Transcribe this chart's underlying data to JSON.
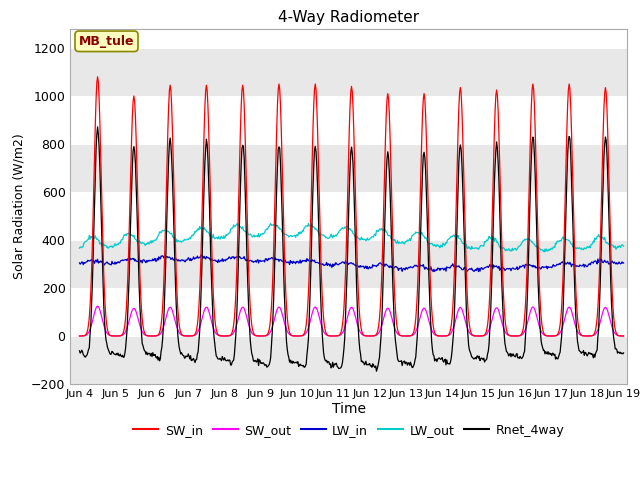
{
  "title": "4-Way Radiometer",
  "xlabel": "Time",
  "ylabel": "Solar Radiation (W/m2)",
  "ylim": [
    -200,
    1280
  ],
  "yticks": [
    -200,
    0,
    200,
    400,
    600,
    800,
    1000,
    1200
  ],
  "x_start_day": 3.75,
  "x_end_day": 19.1,
  "xtick_labels": [
    "Jun 4",
    "Jun 5",
    "Jun 6",
    "Jun 7",
    "Jun 8",
    "Jun 9",
    "Jun 10",
    "Jun 11",
    "Jun 12",
    "Jun 13",
    "Jun 14",
    "Jun 15",
    "Jun 16",
    "Jun 17",
    "Jun 18",
    "Jun 19"
  ],
  "xtick_positions": [
    4,
    5,
    6,
    7,
    8,
    9,
    10,
    11,
    12,
    13,
    14,
    15,
    16,
    17,
    18,
    19
  ],
  "annotation_text": "MB_tule",
  "annotation_bg": "#FFFFC0",
  "annotation_border": "#888800",
  "colors": {
    "SW_in": "#FF0000",
    "SW_out": "#FF00FF",
    "LW_in": "#0000CC",
    "LW_out": "#00CCCC",
    "Rnet_4way": "#000000"
  },
  "legend_labels": [
    "SW_in",
    "SW_out",
    "LW_in",
    "LW_out",
    "Rnet_4way"
  ],
  "figure_bg": "#FFFFFF",
  "plot_bg": "#FFFFFF",
  "band_color": "#E8E8E8",
  "grid_color": "#CCCCCC",
  "figsize": [
    6.4,
    4.8
  ],
  "dpi": 100
}
